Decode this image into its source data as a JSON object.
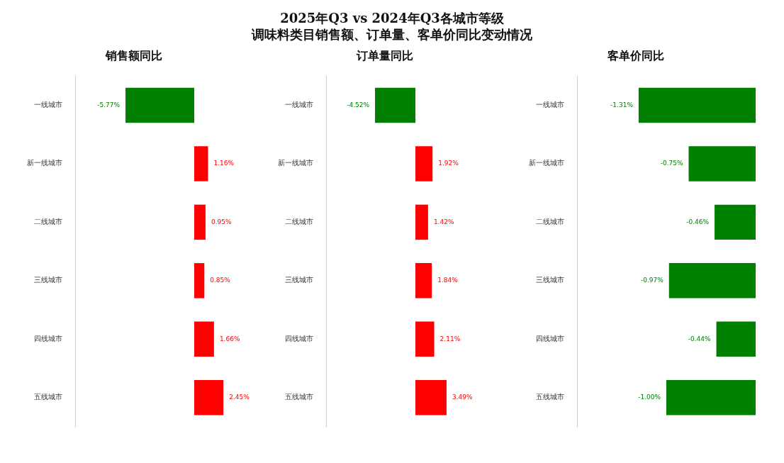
{
  "chart_data": [
    {
      "type": "other",
      "title": "2025年Q3 vs 2024年Q3各城市等级",
      "subtitle": "调味料类目销售额、订单量、客单价同比变动情况"
    },
    {
      "type": "bar",
      "orientation": "horizontal",
      "title": "销售额同比",
      "categories": [
        "一线城市",
        "新一线城市",
        "二线城市",
        "三线城市",
        "四线城市",
        "五线城市"
      ],
      "values": [
        -5.77,
        1.16,
        0.95,
        0.85,
        1.66,
        2.45
      ],
      "colors": [
        "#008000",
        "#ff0000",
        "#ff0000",
        "#ff0000",
        "#ff0000",
        "#ff0000"
      ],
      "value_labels": [
        "-5.77%",
        "1.16%",
        "0.95%",
        "0.85%",
        "1.66%",
        "2.45%"
      ],
      "tick_labels": "y"
    },
    {
      "type": "bar",
      "orientation": "horizontal",
      "title": "订单量同比",
      "categories": [
        "一线城市",
        "新一线城市",
        "二线城市",
        "三线城市",
        "四线城市",
        "五线城市"
      ],
      "values": [
        -4.52,
        1.92,
        1.42,
        1.84,
        2.11,
        3.49
      ],
      "colors": [
        "#008000",
        "#ff0000",
        "#ff0000",
        "#ff0000",
        "#ff0000",
        "#ff0000"
      ],
      "value_labels": [
        "-4.52%",
        "1.92%",
        "1.42%",
        "1.84%",
        "2.11%",
        "3.49%"
      ],
      "tick_labels": "y"
    },
    {
      "type": "bar",
      "orientation": "horizontal",
      "title": "客单价同比",
      "categories": [
        "一线城市",
        "新一线城市",
        "二线城市",
        "三线城市",
        "四线城市",
        "五线城市"
      ],
      "values": [
        -1.31,
        -0.75,
        -0.46,
        -0.97,
        -0.44,
        -1.0
      ],
      "colors": [
        "#008000",
        "#008000",
        "#008000",
        "#008000",
        "#008000",
        "#008000"
      ],
      "value_labels": [
        "-1.31%",
        "-0.75%",
        "-0.46%",
        "-0.97%",
        "-0.44%",
        "-1.00%"
      ],
      "tick_labels": "y"
    }
  ]
}
